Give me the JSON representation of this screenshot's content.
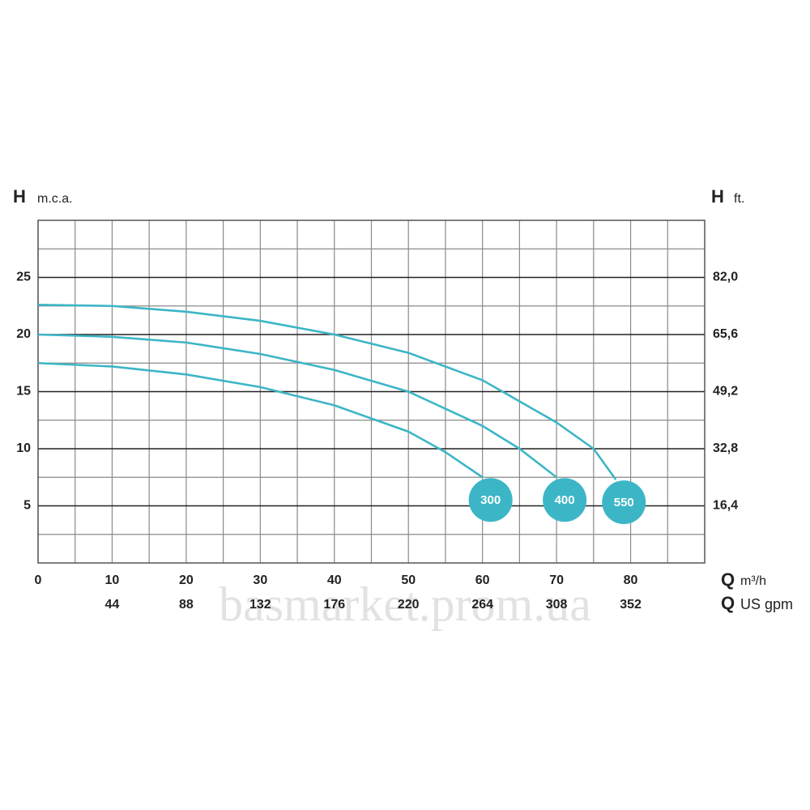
{
  "chart_data": {
    "type": "line",
    "y_label": {
      "symbol": "H",
      "unit": "m.c.a."
    },
    "y2_label": {
      "symbol": "H",
      "unit": "ft."
    },
    "x_label": {
      "symbol": "Q",
      "unit": "m³/h"
    },
    "x2_label": {
      "symbol": "Q",
      "unit": "US gpm"
    },
    "watermark": "basmarket.prom.ua",
    "xlim": [
      0,
      90
    ],
    "xticks": [
      0,
      10,
      20,
      30,
      40,
      50,
      60,
      70,
      80
    ],
    "xminor": [
      5,
      15,
      25,
      35,
      45,
      55,
      65,
      75,
      85
    ],
    "x2lim": [
      0,
      396
    ],
    "x2ticks": [
      44,
      88,
      132,
      176,
      220,
      264,
      308,
      352
    ],
    "ylim": [
      0,
      30
    ],
    "yticks": [
      5,
      10,
      15,
      20,
      25
    ],
    "yminor": [
      2.5,
      7.5,
      12.5,
      17.5,
      22.5,
      27.5
    ],
    "y2lim": [
      0,
      98.4
    ],
    "y2ticks": [
      {
        "value": 16.4,
        "label": "16,4"
      },
      {
        "value": 32.8,
        "label": "32,8"
      },
      {
        "value": 49.2,
        "label": "49,2"
      },
      {
        "value": 65.6,
        "label": "65,6"
      },
      {
        "value": 82.0,
        "label": "82,0"
      }
    ],
    "grid": true,
    "series": [
      {
        "name": "300",
        "color": "#3cb6c6",
        "x": [
          0,
          10,
          20,
          30,
          40,
          50,
          55,
          60
        ],
        "values": [
          17.5,
          17.2,
          16.5,
          15.4,
          13.8,
          11.5,
          9.7,
          7.5
        ]
      },
      {
        "name": "400",
        "color": "#3cb6c6",
        "x": [
          0,
          10,
          20,
          30,
          40,
          50,
          60,
          65,
          70
        ],
        "values": [
          20,
          19.8,
          19.3,
          18.3,
          16.9,
          15.0,
          12.0,
          10.0,
          7.5
        ]
      },
      {
        "name": "550",
        "color": "#3cb6c6",
        "x": [
          0,
          10,
          20,
          30,
          40,
          50,
          60,
          70,
          75,
          78
        ],
        "values": [
          22.6,
          22.5,
          22.0,
          21.2,
          20.0,
          18.4,
          16.0,
          12.3,
          10.0,
          7.3
        ]
      }
    ]
  }
}
